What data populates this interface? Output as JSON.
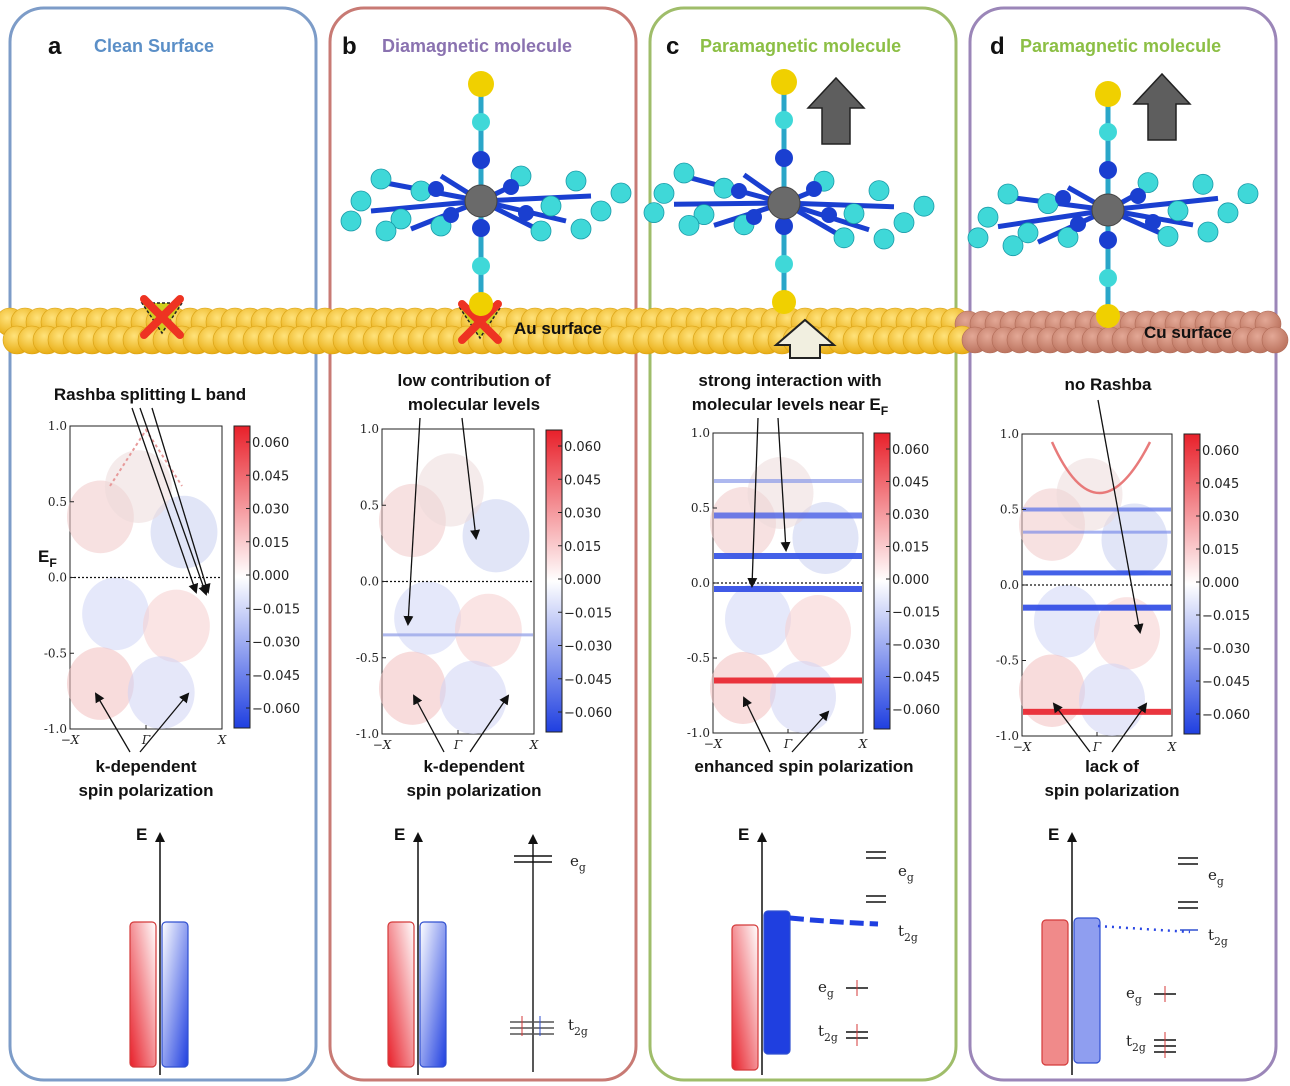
{
  "panels": [
    {
      "letter": "a",
      "title": "Clean Surface",
      "title_color": "#5b8fc7",
      "frame_color": "#7d9cc8",
      "ann_top": [
        "Rashba splitting L band"
      ],
      "ann_bottom": [
        "k-dependent",
        "spin polarization"
      ],
      "ef_label": "E",
      "ef_sub": "F"
    },
    {
      "letter": "b",
      "title": "Diamagnetic molecule",
      "title_color": "#8a72b0",
      "frame_color": "#c87a74",
      "ann_top": [
        "low contribution of",
        "molecular levels"
      ],
      "ann_bottom": [
        "k-dependent",
        "spin polarization"
      ]
    },
    {
      "letter": "c",
      "title": "Paramagnetic molecule",
      "title_color": "#8cbf45",
      "frame_color": "#9fbd6a",
      "ann_top": [
        "strong interaction with",
        "molecular levels  near E"
      ],
      "ann_top_sub": "F",
      "ann_bottom": [
        "enhanced spin polarization"
      ]
    },
    {
      "letter": "d",
      "title": "Paramagnetic molecule",
      "title_color": "#8cbf45",
      "frame_color": "#9b86b8",
      "ann_top": [
        "no Rashba"
      ],
      "ann_bottom": [
        "lack of",
        "spin polarization"
      ]
    }
  ],
  "surfaces": {
    "au_label": "Au surface",
    "cu_label": "Cu surface",
    "au_color": "#f2c21a",
    "cu_color": "#cf8a74"
  },
  "axis": {
    "yticks": [
      "1.0",
      "0.5",
      "0.0",
      "-0.5",
      "-1.0"
    ],
    "xticks": [
      "−X",
      "Γ",
      "X"
    ]
  },
  "colorbar": {
    "ticks": [
      "0.060",
      "0.045",
      "0.030",
      "0.015",
      "0.000",
      "−0.015",
      "−0.030",
      "−0.045",
      "−0.060"
    ]
  },
  "energy_diagram": {
    "axis_label": "E",
    "eg": "e",
    "eg_sub": "g",
    "t2g": "t",
    "t2g_sub": "2g"
  },
  "colors": {
    "spin_up": "#e8202a",
    "spin_down": "#1f3fe0",
    "molecule_c": "#3fd8d8",
    "molecule_n": "#1a3fd0",
    "molecule_s": "#f0d000",
    "metal": "#6a6a6a"
  }
}
